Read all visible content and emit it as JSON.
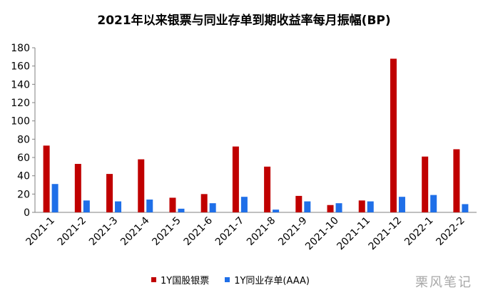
{
  "chart_data": {
    "type": "bar",
    "title": "2021年以来银票与同业存单到期收益率每月振幅(BP)",
    "categories": [
      "2021-1",
      "2021-2",
      "2021-3",
      "2021-4",
      "2021-5",
      "2021-6",
      "2021-7",
      "2021-8",
      "2021-9",
      "2021-10",
      "2021-11",
      "2021-12",
      "2022-1",
      "2022-2"
    ],
    "series": [
      {
        "name": "1Y国股银票",
        "color": "#C00000",
        "values": [
          73,
          53,
          42,
          58,
          16,
          20,
          72,
          50,
          18,
          8,
          13,
          168,
          61,
          69
        ]
      },
      {
        "name": "1Y同业存单(AAA)",
        "color": "#1F6FE8",
        "values": [
          31,
          13,
          12,
          14,
          4,
          10,
          17,
          3,
          12,
          10,
          12,
          17,
          19,
          9
        ]
      }
    ],
    "ylim": [
      0,
      180
    ],
    "yticks": [
      0,
      20,
      40,
      60,
      80,
      100,
      120,
      140,
      160,
      180
    ],
    "grid": false,
    "legend_position": "bottom"
  },
  "watermark": "栗风笔记"
}
